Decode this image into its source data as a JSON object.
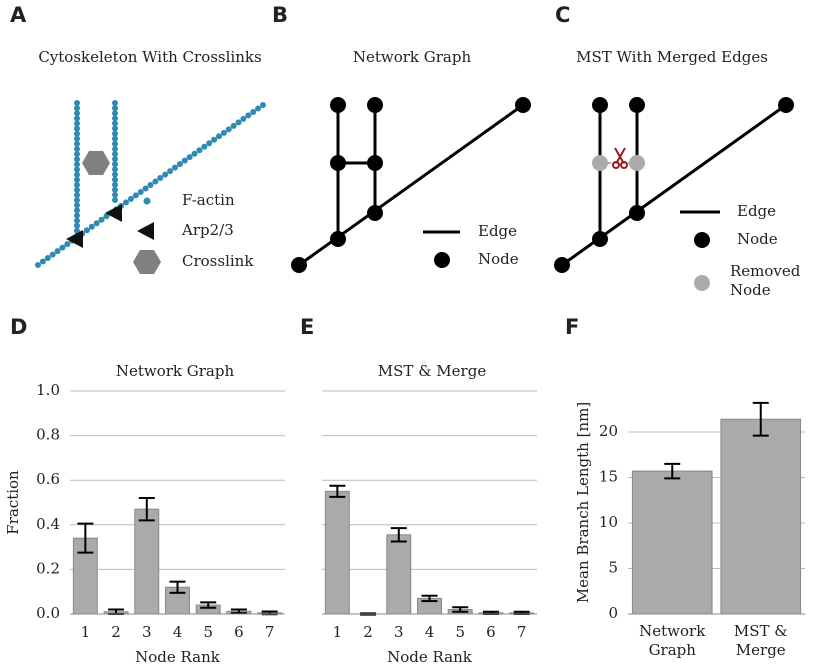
{
  "diagrams": [
    {
      "letter": "A",
      "title": "Cytoskeleton With Crosslinks",
      "legend": [
        "F-actin",
        "Arp2/3",
        "Crosslink"
      ]
    },
    {
      "letter": "B",
      "title": "Network Graph",
      "legend": [
        "Edge",
        "Node"
      ]
    },
    {
      "letter": "C",
      "title": "MST With Merged Edges",
      "legend": [
        "Edge",
        "Node",
        "Removed Node"
      ]
    }
  ],
  "chart_data": [
    {
      "type": "bar",
      "panel": "D",
      "title": "Network Graph",
      "x_label": "Node Rank",
      "y_label": "Fraction",
      "categories": [
        "1",
        "2",
        "3",
        "4",
        "5",
        "6",
        "7"
      ],
      "values": [
        0.34,
        0.01,
        0.47,
        0.12,
        0.04,
        0.012,
        0.005
      ],
      "errors": [
        0.065,
        0.01,
        0.05,
        0.025,
        0.012,
        0.008,
        0.006
      ],
      "color": "#aaaaaa",
      "ylim": [
        0,
        1.0
      ],
      "yticks": [
        {
          "value": 0,
          "label": "0.0"
        },
        0.2,
        0.4,
        0.6,
        0.8,
        {
          "value": 1.0,
          "label": "1.0"
        }
      ],
      "grid": true
    },
    {
      "type": "bar",
      "panel": "E",
      "title": "MST & Merge",
      "x_label": "Node Rank",
      "categories": [
        "1",
        "2",
        "3",
        "4",
        "5",
        "6",
        "7"
      ],
      "values": [
        0.55,
        0.0,
        0.355,
        0.07,
        0.02,
        0.005,
        0.005
      ],
      "errors": [
        0.025,
        0.003,
        0.03,
        0.012,
        0.01,
        0.005,
        0.005
      ],
      "color": "#aaaaaa",
      "ylim": [
        0,
        1.0
      ],
      "yticks": [
        0,
        0.2,
        0.4,
        0.6,
        0.8,
        1.0
      ],
      "grid": true
    },
    {
      "type": "bar",
      "panel": "F",
      "y_label": "Mean Branch Length [nm]",
      "categories": [
        "Network Graph",
        "MST & Merge"
      ],
      "values": [
        15.7,
        21.4
      ],
      "errors": [
        0.8,
        1.8
      ],
      "color": "#aaaaaa",
      "ylim": [
        0,
        24.5
      ],
      "yticks": [
        0,
        5,
        10,
        15,
        20
      ],
      "grid": true
    }
  ]
}
